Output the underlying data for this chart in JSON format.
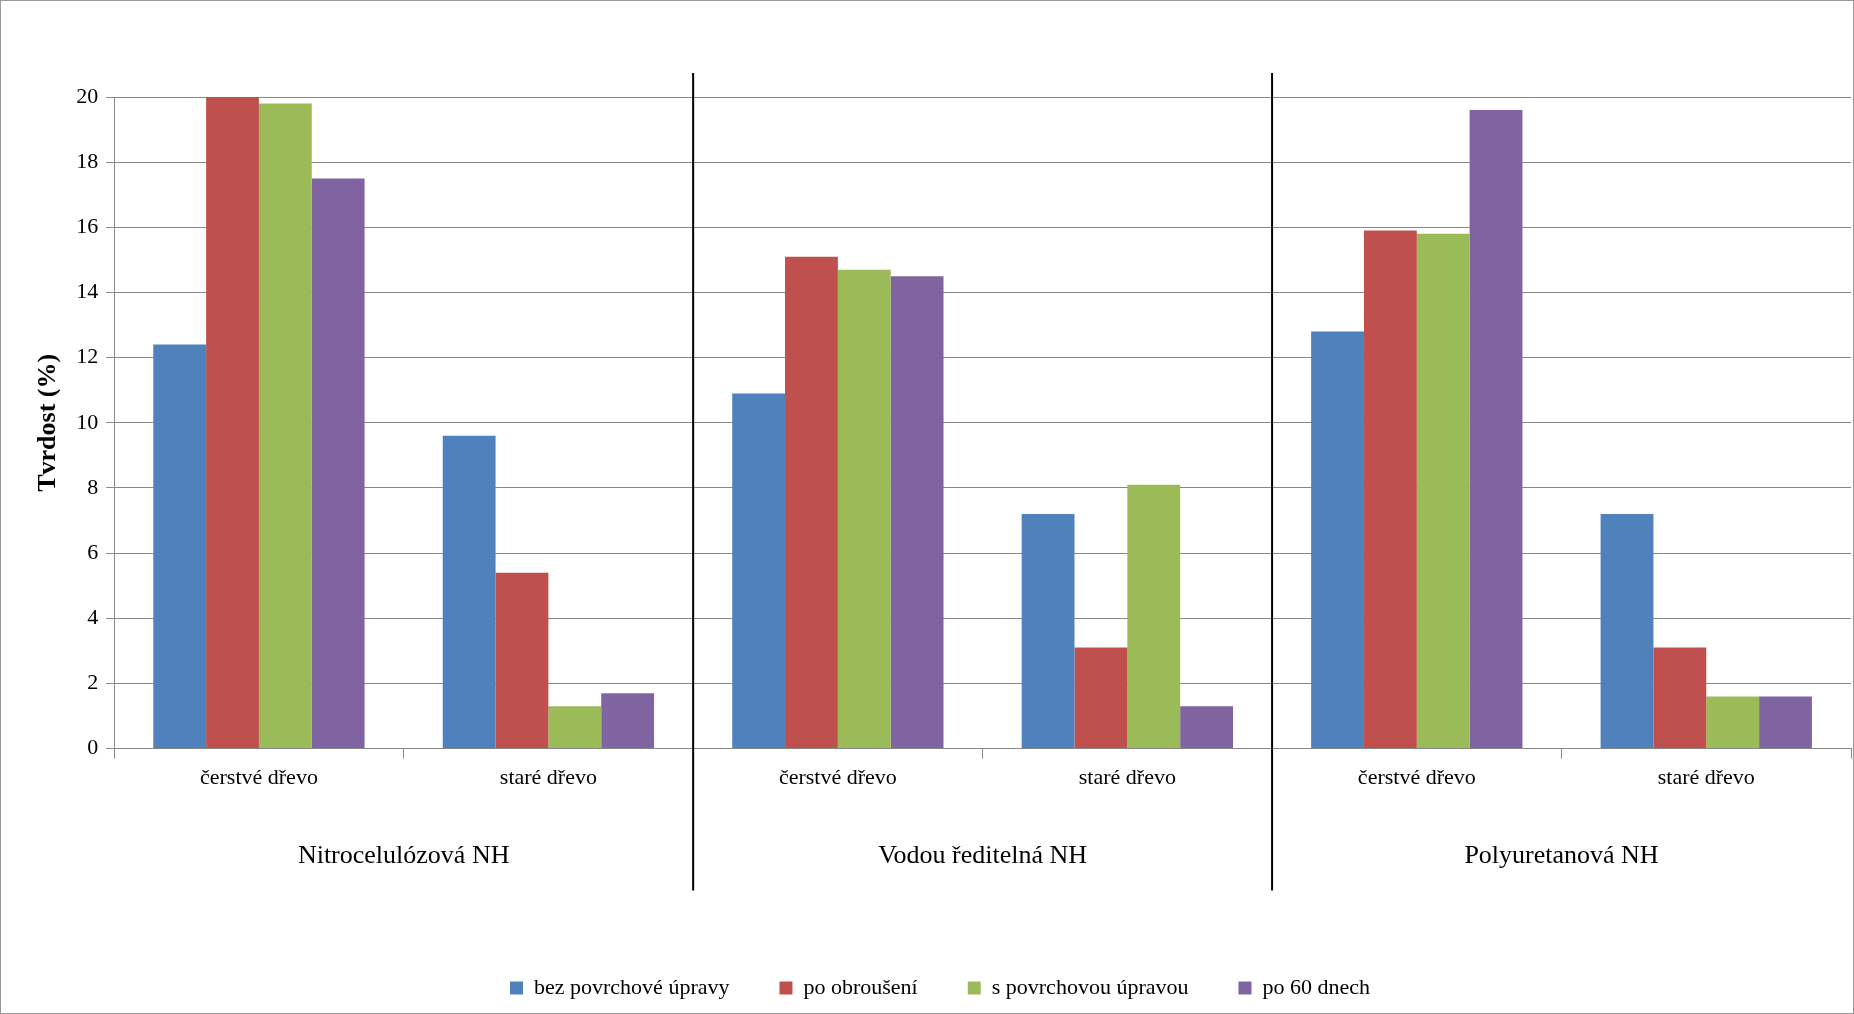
{
  "chart_data": {
    "type": "bar",
    "ylabel": "Tvrdost (%)",
    "categories": [
      "čerstvé dřevo",
      "staré dřevo",
      "čerstvé dřevo",
      "staré dřevo",
      "čerstvé dřevo",
      "staré dřevo"
    ],
    "annotations": [
      "Nitrocelulózová NH",
      "Vodou ředitelná NH",
      "Polyuretanová NH"
    ],
    "series": [
      {
        "name": "bez povrchové úpravy",
        "color": "#4f81bd",
        "values": [
          12.4,
          9.6,
          10.9,
          7.2,
          12.8,
          7.2
        ]
      },
      {
        "name": "po obroušení",
        "color": "#c0504d",
        "values": [
          20,
          5.4,
          15.1,
          3.1,
          15.9,
          3.1
        ]
      },
      {
        "name": "s povrchovou úpravou",
        "color": "#9bbb59",
        "values": [
          19.8,
          1.3,
          14.7,
          8.1,
          15.8,
          1.6
        ]
      },
      {
        "name": "po 60 dnech",
        "color": "#8064a2",
        "values": [
          17.5,
          1.7,
          14.5,
          1.3,
          19.6,
          1.6
        ]
      }
    ],
    "ylim": [
      0,
      20
    ],
    "yticks": [
      0,
      2,
      4,
      6,
      8,
      10,
      12,
      14,
      16,
      18,
      20
    ],
    "grid": "y",
    "legend": "bottom"
  }
}
